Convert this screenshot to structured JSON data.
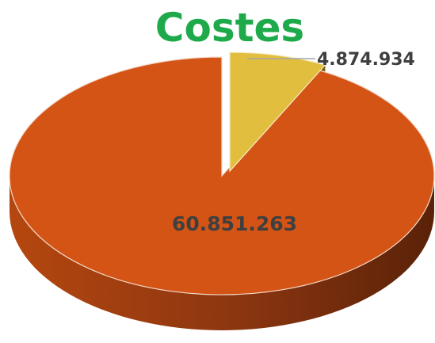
{
  "chart_data": {
    "type": "pie",
    "title": "Costes",
    "slices": [
      {
        "value": 60851263,
        "label": "60.851.263",
        "color": "#d45416",
        "side_color_light": "#b5470f",
        "side_color_dark": "#5a2208"
      },
      {
        "value": 4874934,
        "label": "4.874.934",
        "color": "#e2be3e",
        "side_color_light": "#c39c22",
        "side_color_dark": "#7a5e10"
      }
    ],
    "exploded_slice": 1,
    "style": "3d",
    "title_color": "#1eaa4a",
    "label_color": "#3f3f3f",
    "leader_line_color": "#a6a6a6"
  }
}
